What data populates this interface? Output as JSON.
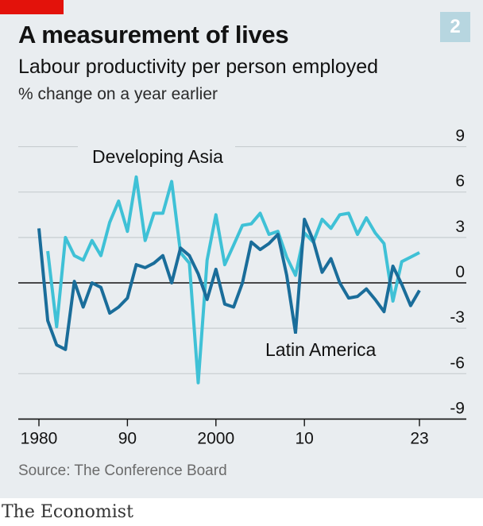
{
  "header": {
    "title": "A measurement of lives",
    "subtitle": "Labour productivity per person employed",
    "units": "% change on a year earlier",
    "badge": "2"
  },
  "footer": {
    "source": "Source: The Conference Board",
    "brand": "The Economist"
  },
  "colors": {
    "developing_asia": "#3fc1d6",
    "latin_america": "#1a6d9a",
    "grid": "#c8cdd0",
    "zero_line": "#121212",
    "panel_bg": "#e9edf0",
    "accent": "#e3120b"
  },
  "chart_data": {
    "type": "line",
    "title": "Labour productivity per person employed",
    "ylabel": "% change on a year earlier",
    "xlim": [
      1980,
      2023
    ],
    "ylim": [
      -9,
      9
    ],
    "yticks": [
      9,
      6,
      3,
      0,
      -3,
      -6,
      -9
    ],
    "ytick_labels": [
      "9",
      "6",
      "3",
      "0",
      "-3",
      "-6",
      "-9"
    ],
    "xticks": [
      1980,
      1990,
      2000,
      2010,
      2023
    ],
    "xtick_labels": [
      "1980",
      "90",
      "2000",
      "10",
      "23"
    ],
    "grid": true,
    "x": [
      1980,
      1981,
      1982,
      1983,
      1984,
      1985,
      1986,
      1987,
      1988,
      1989,
      1990,
      1991,
      1992,
      1993,
      1994,
      1995,
      1996,
      1997,
      1998,
      1999,
      2000,
      2001,
      2002,
      2003,
      2004,
      2005,
      2006,
      2007,
      2008,
      2009,
      2010,
      2011,
      2012,
      2013,
      2014,
      2015,
      2016,
      2017,
      2018,
      2019,
      2020,
      2021,
      2022,
      2023
    ],
    "series": [
      {
        "name": "Developing Asia",
        "key": "developing_asia",
        "values": [
          null,
          2.1,
          -2.9,
          3.0,
          1.8,
          1.5,
          2.8,
          1.8,
          4.0,
          5.4,
          3.4,
          7.0,
          2.8,
          4.6,
          4.6,
          6.7,
          2.0,
          1.3,
          -6.6,
          1.5,
          4.5,
          1.2,
          2.5,
          3.8,
          3.9,
          4.6,
          3.2,
          3.4,
          1.7,
          0.5,
          3.3,
          2.7,
          4.2,
          3.6,
          4.5,
          4.6,
          3.2,
          4.3,
          3.3,
          2.6,
          -1.2,
          1.4,
          1.7,
          2.0
        ]
      },
      {
        "name": "Latin America",
        "key": "latin_america",
        "values": [
          3.6,
          -2.5,
          -4.1,
          -4.4,
          0.1,
          -1.6,
          0.0,
          -0.3,
          -2.0,
          -1.6,
          -1.0,
          1.2,
          1.0,
          1.3,
          1.8,
          0.0,
          2.3,
          1.8,
          0.6,
          -1.1,
          0.9,
          -1.4,
          -1.6,
          0.0,
          2.7,
          2.2,
          2.6,
          3.2,
          0.5,
          -3.3,
          4.2,
          2.8,
          0.7,
          1.6,
          0.0,
          -1.0,
          -0.9,
          -0.4,
          -1.1,
          -1.9,
          1.1,
          -0.1,
          -1.5,
          -0.5
        ]
      }
    ],
    "annotations": [
      {
        "text": "Developing Asia",
        "series": "Developing Asia"
      },
      {
        "text": "Latin America",
        "series": "Latin America"
      }
    ]
  }
}
